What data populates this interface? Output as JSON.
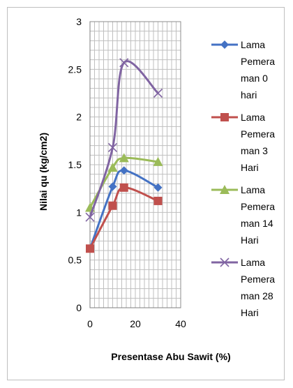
{
  "chart_data": {
    "type": "line",
    "title": "",
    "xlabel": "Presentase Abu Sawit (%)",
    "ylabel": "Nilai qu (kg/cm2)",
    "xlim": [
      0,
      40
    ],
    "ylim": [
      0,
      3
    ],
    "x_ticks": [
      "0",
      "20",
      "40"
    ],
    "y_ticks": [
      "0",
      "0.5",
      "1",
      "1.5",
      "2",
      "2.5",
      "3"
    ],
    "grid": true,
    "legend_position": "right",
    "smooth": true,
    "series": [
      {
        "name": "Lama Pemeraman 0 hari",
        "legend_lines": [
          "Lama",
          "Pemera",
          "man 0",
          "hari"
        ],
        "color": "#4472c4",
        "marker": "diamond",
        "x": [
          0,
          10,
          15,
          30
        ],
        "y": [
          0.62,
          1.27,
          1.44,
          1.26
        ]
      },
      {
        "name": "Lama Pemeraman 3 Hari",
        "legend_lines": [
          "Lama",
          "Pemera",
          "man 3",
          "Hari"
        ],
        "color": "#c0504d",
        "marker": "square",
        "x": [
          0,
          10,
          15,
          30
        ],
        "y": [
          0.62,
          1.07,
          1.26,
          1.12
        ]
      },
      {
        "name": "Lama Pemeraman 14 Hari",
        "legend_lines": [
          "Lama",
          "Pemera",
          "man 14",
          "Hari"
        ],
        "color": "#9bbb59",
        "marker": "triangle",
        "x": [
          0,
          10,
          15,
          30
        ],
        "y": [
          1.05,
          1.47,
          1.57,
          1.53
        ]
      },
      {
        "name": "Lama Pemeraman 28 Hari",
        "legend_lines": [
          "Lama",
          "Pemera",
          "man 28",
          "Hari"
        ],
        "color": "#8064a2",
        "marker": "x",
        "x": [
          0,
          10,
          15,
          30
        ],
        "y": [
          0.95,
          1.68,
          2.57,
          2.25
        ]
      }
    ]
  }
}
